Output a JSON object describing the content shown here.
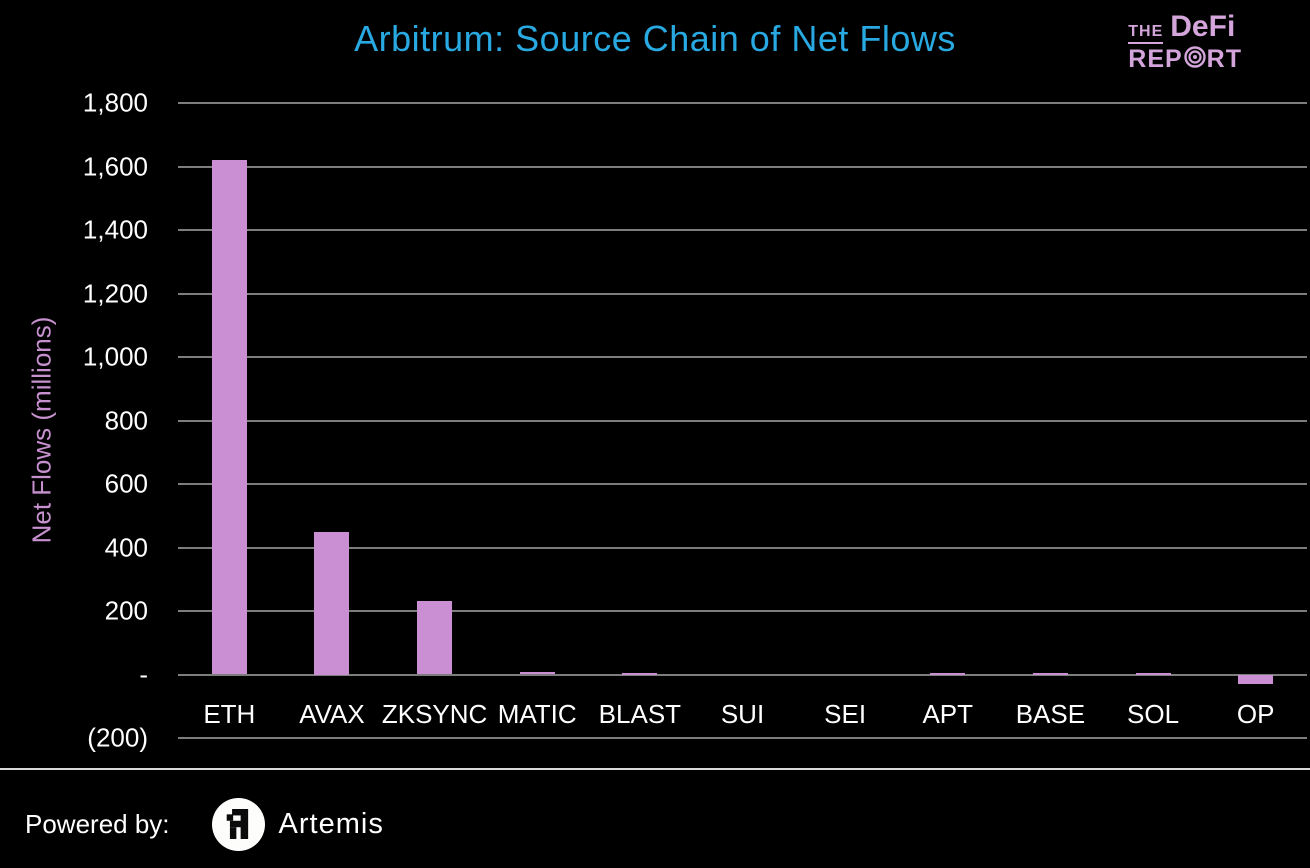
{
  "header": {
    "title": "Arbitrum: Source Chain of Net Flows",
    "logo": {
      "line1_prefix": "THE",
      "line1_main": "DeFi",
      "line2_left": "REP",
      "line2_right": "RT"
    }
  },
  "chart_data": {
    "type": "bar",
    "title": "Arbitrum: Source Chain of Net Flows",
    "xlabel": "",
    "ylabel": "Net Flows (millions)",
    "categories": [
      "ETH",
      "AVAX",
      "ZKSYNC",
      "MATIC",
      "BLAST",
      "SUI",
      "SEI",
      "APT",
      "BASE",
      "SOL",
      "OP"
    ],
    "values": [
      1620,
      450,
      230,
      8,
      3,
      0,
      0,
      2,
      2,
      4,
      -30
    ],
    "ylim": [
      -200,
      1800
    ],
    "ytick_interval": 200,
    "ytick_labels": [
      "1,800",
      "1,600",
      "1,400",
      "1,200",
      "1,000",
      "800",
      "600",
      "400",
      "200",
      "-",
      "(200)"
    ],
    "grid": true,
    "legend_position": "none",
    "bar_color": "#c98fd2"
  },
  "footer": {
    "powered_by": "Powered by:",
    "brand": "Artemis"
  },
  "colors": {
    "background": "#000000",
    "title": "#29a9e1",
    "logo_plum": "#d3a5da",
    "axis_label": "#c791cf",
    "tick_label": "#ffffff",
    "gridline": "#7d7d7d",
    "bar": "#c98fd2",
    "separator": "#d9d9d9"
  }
}
